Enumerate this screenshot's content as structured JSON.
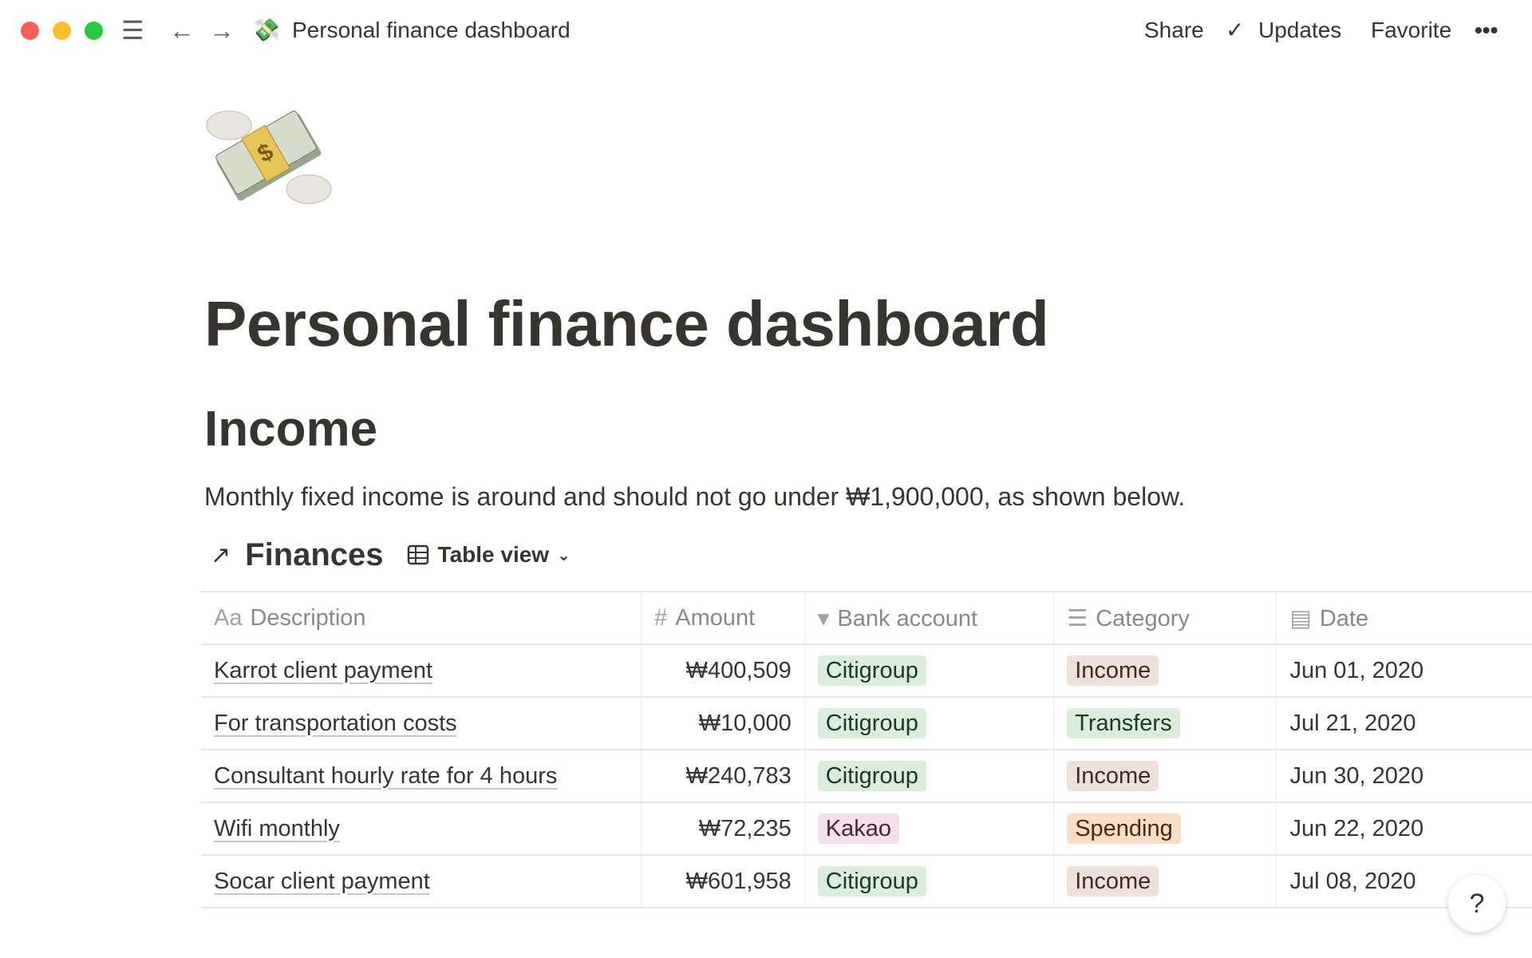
{
  "window": {
    "controls": {
      "close": "#ff5f57",
      "minimize": "#febc2e",
      "maximize": "#28c840"
    }
  },
  "topbar": {
    "breadcrumb": "Personal finance dashboard",
    "share": "Share",
    "updates": "Updates",
    "favorite": "Favorite",
    "more": "•••"
  },
  "page": {
    "icon": "money-with-wings-icon",
    "title": "Personal finance dashboard",
    "heading": "Income",
    "paragraph": "Monthly fixed income is around and should not go under ₩1,900,000, as shown below."
  },
  "database": {
    "link_arrow": "↗",
    "title": "Finances",
    "view": "Table view",
    "columns": [
      {
        "icon": "Aa",
        "label": "Description"
      },
      {
        "icon": "#",
        "label": "Amount"
      },
      {
        "icon": "▾",
        "label": "Bank account"
      },
      {
        "icon": "☰",
        "label": "Category"
      },
      {
        "icon": "▤",
        "label": "Date"
      }
    ],
    "rows": [
      {
        "description": "Karrot client payment",
        "amount": "₩400,509",
        "bank": "Citigroup",
        "category": "Income",
        "date": "Jun 01, 2020"
      },
      {
        "description": "For transportation costs",
        "amount": "₩10,000",
        "bank": "Citigroup",
        "category": "Transfers",
        "date": "Jul 21, 2020"
      },
      {
        "description": "Consultant hourly rate for 4 hours",
        "amount": "₩240,783",
        "bank": "Citigroup",
        "category": "Income",
        "date": "Jun 30, 2020"
      },
      {
        "description": "Wifi monthly",
        "amount": "₩72,235",
        "bank": "Kakao",
        "category": "Spending",
        "date": "Jun 22, 2020"
      },
      {
        "description": "Socar client payment",
        "amount": "₩601,958",
        "bank": "Citigroup",
        "category": "Income",
        "date": "Jul 08, 2020"
      }
    ]
  },
  "tag_colors": {
    "Citigroup": "#dbeddb",
    "Kakao": "#f5e0e9",
    "Income": "#eee0da",
    "Transfers": "#dbeddb",
    "Spending": "#fadec9"
  },
  "help": "?"
}
